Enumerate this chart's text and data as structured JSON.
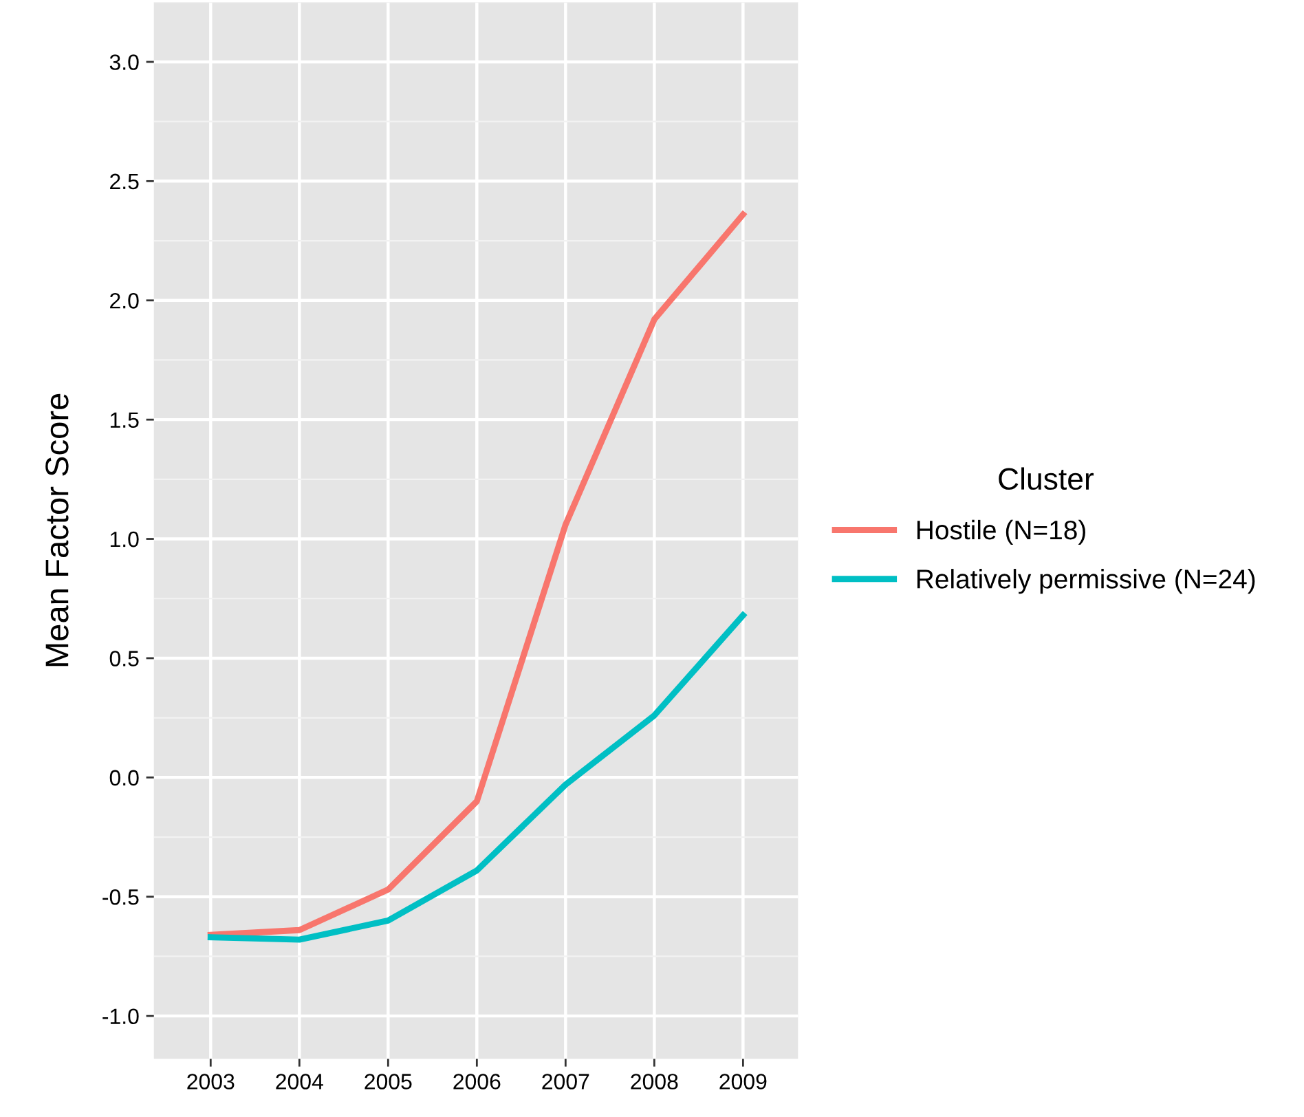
{
  "chart_data": {
    "type": "line",
    "ylabel": "Mean Factor Score",
    "legend_title": "Cluster",
    "x": [
      2003,
      2004,
      2005,
      2006,
      2007,
      2008,
      2009
    ],
    "series": [
      {
        "name": "Hostile (N=18)",
        "color": "#f8766d",
        "values": [
          -0.66,
          -0.64,
          -0.47,
          -0.1,
          1.06,
          1.92,
          2.36
        ]
      },
      {
        "name": "Relatively permissive (N=24)",
        "color": "#00bfc4",
        "values": [
          -0.67,
          -0.68,
          -0.6,
          -0.39,
          -0.03,
          0.26,
          0.68
        ]
      }
    ],
    "xlim": [
      2002.36,
      2009.62
    ],
    "ylim": [
      -1.18,
      3.25
    ],
    "xticks": [
      2003,
      2004,
      2005,
      2006,
      2007,
      2008,
      2009
    ],
    "yticks": [
      {
        "value": -1,
        "label": "-1.0"
      },
      {
        "value": -0.5,
        "label": "-0.5"
      },
      {
        "value": 0,
        "label": "0.0"
      },
      {
        "value": 0.5,
        "label": "0.5"
      },
      {
        "value": 1,
        "label": "1.0"
      },
      {
        "value": 1.5,
        "label": "1.5"
      },
      {
        "value": 2,
        "label": "2.0"
      },
      {
        "value": 2.5,
        "label": "2.5"
      },
      {
        "value": 3,
        "label": "3.0"
      }
    ],
    "grid": true,
    "legend": "right",
    "marker": "none",
    "line_style": "solid"
  }
}
